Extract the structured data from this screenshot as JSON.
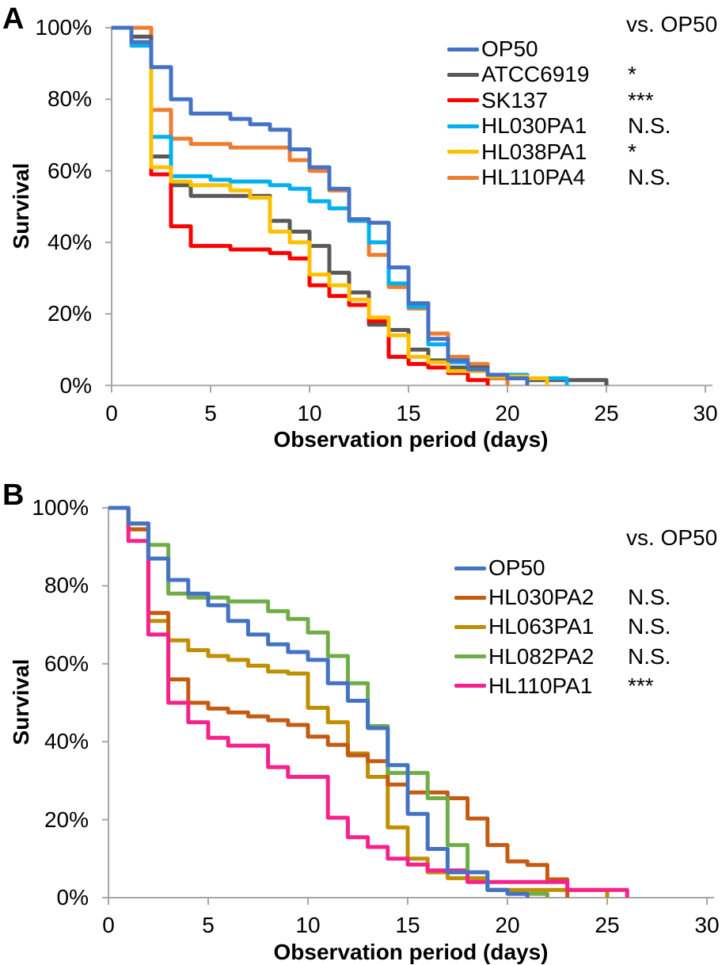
{
  "chart_data": [
    {
      "type": "line",
      "subtype": "kaplan-meier-step-survival",
      "panel_label": "A",
      "ylabel": "Survival",
      "xlabel": "Observation period (days)",
      "comparison_header": "vs. OP50",
      "x_ticks": [
        0,
        5,
        10,
        15,
        20,
        25,
        30
      ],
      "y_tick_labels": [
        "100%",
        "80%",
        "60%",
        "40%",
        "20%",
        "0%"
      ],
      "xlim": [
        0,
        30
      ],
      "ylim": [
        "0%",
        "100%"
      ],
      "grid": false,
      "legend_position": "upper-right-inside",
      "series": [
        {
          "name": "OP50",
          "color": "#4472C4",
          "vs_op50": "",
          "points": [
            [
              0,
              100
            ],
            [
              1,
              96
            ],
            [
              2,
              89
            ],
            [
              3,
              80
            ],
            [
              4,
              76
            ],
            [
              6,
              74.5
            ],
            [
              7,
              73
            ],
            [
              8,
              71.5
            ],
            [
              9,
              66
            ],
            [
              10,
              61
            ],
            [
              11,
              55
            ],
            [
              12,
              46.5
            ],
            [
              13,
              45.5
            ],
            [
              14,
              33
            ],
            [
              15,
              23
            ],
            [
              16,
              13
            ],
            [
              17,
              7
            ],
            [
              18,
              4.5
            ],
            [
              19,
              3
            ],
            [
              20,
              2
            ],
            [
              21,
              0
            ]
          ]
        },
        {
          "name": "ATCC6919",
          "color": "#595959",
          "vs_op50": "*",
          "points": [
            [
              0,
              100
            ],
            [
              1,
              97.5
            ],
            [
              2,
              64
            ],
            [
              3,
              56
            ],
            [
              4,
              53
            ],
            [
              8,
              46
            ],
            [
              9,
              43
            ],
            [
              10,
              39
            ],
            [
              11,
              31.5
            ],
            [
              12,
              26
            ],
            [
              13,
              17
            ],
            [
              14,
              15.5
            ],
            [
              15,
              10
            ],
            [
              16,
              7
            ],
            [
              17,
              5
            ],
            [
              19,
              2.5
            ],
            [
              21,
              1.5
            ],
            [
              25,
              0
            ]
          ]
        },
        {
          "name": "SK137",
          "color": "#FF0000",
          "vs_op50": "***",
          "points": [
            [
              0,
              100
            ],
            [
              1,
              96
            ],
            [
              2,
              59
            ],
            [
              3,
              44.5
            ],
            [
              4,
              39
            ],
            [
              6,
              38
            ],
            [
              8,
              37
            ],
            [
              9,
              35.5
            ],
            [
              10,
              28
            ],
            [
              11,
              25
            ],
            [
              12,
              22.5
            ],
            [
              13,
              18
            ],
            [
              14,
              8
            ],
            [
              15,
              6
            ],
            [
              16,
              5
            ],
            [
              17,
              3.5
            ],
            [
              18,
              1.5
            ],
            [
              19,
              0
            ]
          ]
        },
        {
          "name": "HL030PA1",
          "color": "#00B0F0",
          "vs_op50": "N.S.",
          "points": [
            [
              0,
              100
            ],
            [
              1,
              95
            ],
            [
              2,
              69.5
            ],
            [
              3,
              58.5
            ],
            [
              5,
              57.5
            ],
            [
              6,
              57
            ],
            [
              8,
              56
            ],
            [
              9,
              55
            ],
            [
              10,
              51.5
            ],
            [
              11,
              49.5
            ],
            [
              12,
              46
            ],
            [
              13,
              40
            ],
            [
              14,
              28.5
            ],
            [
              15,
              22
            ],
            [
              16,
              11.5
            ],
            [
              17,
              6.5
            ],
            [
              18,
              4
            ],
            [
              19,
              3
            ],
            [
              21,
              2
            ],
            [
              23,
              0
            ]
          ]
        },
        {
          "name": "HL038PA1",
          "color": "#FFC000",
          "vs_op50": "*",
          "points": [
            [
              0,
              100
            ],
            [
              1,
              96
            ],
            [
              2,
              61
            ],
            [
              3,
              57
            ],
            [
              4,
              56
            ],
            [
              6,
              54.5
            ],
            [
              7,
              52.5
            ],
            [
              8,
              43
            ],
            [
              9,
              40
            ],
            [
              10,
              31
            ],
            [
              11,
              28
            ],
            [
              12,
              24
            ],
            [
              13,
              19
            ],
            [
              14,
              14
            ],
            [
              15,
              8
            ],
            [
              16,
              6.5
            ],
            [
              17,
              4
            ],
            [
              19,
              2.5
            ],
            [
              21,
              2
            ],
            [
              22,
              0
            ]
          ]
        },
        {
          "name": "HL110PA4",
          "color": "#ED7D31",
          "vs_op50": "N.S.",
          "points": [
            [
              0,
              100
            ],
            [
              2,
              77
            ],
            [
              3,
              69
            ],
            [
              4,
              67.5
            ],
            [
              6,
              66.5
            ],
            [
              9,
              63
            ],
            [
              10,
              60
            ],
            [
              11,
              54.5
            ],
            [
              12,
              46
            ],
            [
              13,
              36.5
            ],
            [
              14,
              27.5
            ],
            [
              15,
              21.5
            ],
            [
              16,
              14.5
            ],
            [
              17,
              8
            ],
            [
              18,
              6
            ],
            [
              19,
              2
            ],
            [
              20,
              0
            ]
          ]
        }
      ]
    },
    {
      "type": "line",
      "subtype": "kaplan-meier-step-survival",
      "panel_label": "B",
      "ylabel": "Survival",
      "xlabel": "Observation period (days)",
      "comparison_header": "vs. OP50",
      "x_ticks": [
        0,
        5,
        10,
        15,
        20,
        25,
        30
      ],
      "y_tick_labels": [
        "100%",
        "80%",
        "60%",
        "40%",
        "20%",
        "0%"
      ],
      "xlim": [
        0,
        30
      ],
      "ylim": [
        "0%",
        "100%"
      ],
      "grid": false,
      "legend_position": "upper-right-inside",
      "series": [
        {
          "name": "OP50",
          "color": "#4472C4",
          "vs_op50": "",
          "points": [
            [
              0,
              100
            ],
            [
              1,
              96
            ],
            [
              2,
              87
            ],
            [
              3,
              81.5
            ],
            [
              4,
              78
            ],
            [
              5,
              75
            ],
            [
              6,
              71
            ],
            [
              7,
              67.5
            ],
            [
              8,
              65
            ],
            [
              9,
              63
            ],
            [
              10,
              61
            ],
            [
              11,
              55
            ],
            [
              12,
              50.5
            ],
            [
              13,
              43.5
            ],
            [
              14,
              34
            ],
            [
              15,
              21.5
            ],
            [
              16,
              12.5
            ],
            [
              17,
              6.5
            ],
            [
              19,
              2
            ],
            [
              20,
              1
            ],
            [
              21,
              0
            ]
          ]
        },
        {
          "name": "HL030PA2",
          "color": "#C55A11",
          "vs_op50": "N.S.",
          "points": [
            [
              0,
              100
            ],
            [
              1,
              94.5
            ],
            [
              2,
              73
            ],
            [
              3,
              56
            ],
            [
              4,
              50
            ],
            [
              5,
              48.5
            ],
            [
              6,
              47.5
            ],
            [
              7,
              46.5
            ],
            [
              8,
              45.5
            ],
            [
              9,
              44.3
            ],
            [
              10,
              41.3
            ],
            [
              11,
              39.2
            ],
            [
              12,
              36.5
            ],
            [
              13,
              35
            ],
            [
              14,
              29
            ],
            [
              15,
              27
            ],
            [
              17,
              25.5
            ],
            [
              18,
              20.3
            ],
            [
              19,
              13.5
            ],
            [
              20,
              9.3
            ],
            [
              21,
              8.4
            ],
            [
              22,
              4.7
            ],
            [
              23,
              0
            ]
          ]
        },
        {
          "name": "HL063PA1",
          "color": "#BF8F00",
          "vs_op50": "N.S.",
          "points": [
            [
              0,
              100
            ],
            [
              1,
              94.5
            ],
            [
              2,
              71
            ],
            [
              3,
              66
            ],
            [
              4,
              63.5
            ],
            [
              5,
              62
            ],
            [
              6,
              61
            ],
            [
              7,
              59.5
            ],
            [
              8,
              58
            ],
            [
              9,
              57.5
            ],
            [
              10,
              48.7
            ],
            [
              11,
              45
            ],
            [
              12,
              37
            ],
            [
              13,
              31
            ],
            [
              14,
              18
            ],
            [
              15,
              10
            ],
            [
              16,
              6.5
            ],
            [
              17,
              5
            ],
            [
              19,
              2
            ],
            [
              25,
              0
            ]
          ]
        },
        {
          "name": "HL082PA2",
          "color": "#70AD47",
          "vs_op50": "N.S.",
          "points": [
            [
              0,
              100
            ],
            [
              1,
              96
            ],
            [
              2,
              90.5
            ],
            [
              3,
              78
            ],
            [
              4,
              77
            ],
            [
              6,
              76
            ],
            [
              8,
              73.5
            ],
            [
              9,
              71.5
            ],
            [
              10,
              68
            ],
            [
              11,
              62
            ],
            [
              12,
              55
            ],
            [
              13,
              44
            ],
            [
              14,
              32
            ],
            [
              16,
              25.5
            ],
            [
              17,
              13.5
            ],
            [
              18,
              6.5
            ],
            [
              19,
              2
            ],
            [
              20,
              1
            ],
            [
              22,
              0
            ]
          ]
        },
        {
          "name": "HL110PA1",
          "color": "#F7218C",
          "vs_op50": "***",
          "points": [
            [
              0,
              100
            ],
            [
              1,
              91.5
            ],
            [
              2,
              67.5
            ],
            [
              3,
              50
            ],
            [
              4,
              45
            ],
            [
              5,
              41
            ],
            [
              6,
              39
            ],
            [
              8,
              33.5
            ],
            [
              9,
              31
            ],
            [
              11,
              20.5
            ],
            [
              12,
              15.5
            ],
            [
              13,
              13
            ],
            [
              14,
              10
            ],
            [
              15,
              8.5
            ],
            [
              16,
              7
            ],
            [
              18,
              4
            ],
            [
              23,
              2
            ],
            [
              26,
              0
            ]
          ]
        }
      ]
    }
  ]
}
